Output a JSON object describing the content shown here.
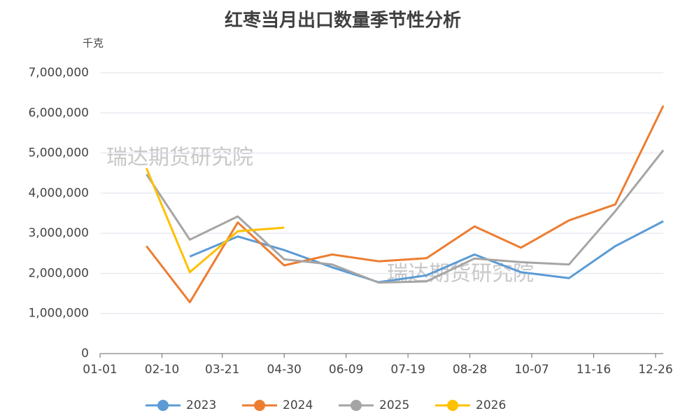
{
  "chart_data": {
    "type": "line",
    "title": "红枣当月出口数量季节性分析",
    "y_unit": "千克",
    "watermarks": [
      "瑞达期货研究院",
      "瑞达期货研究院"
    ],
    "x": [
      "01-31",
      "02-28",
      "03-31",
      "04-30",
      "05-31",
      "06-30",
      "07-31",
      "08-31",
      "09-30",
      "10-31",
      "11-30",
      "12-31"
    ],
    "xlim": [
      "01-01",
      "12-31"
    ],
    "xticks": [
      "01-01",
      "02-10",
      "03-21",
      "04-30",
      "06-09",
      "07-19",
      "08-28",
      "10-07",
      "11-16",
      "12-26"
    ],
    "ylim": [
      0,
      7000000
    ],
    "yticks": [
      0,
      {
        "value": 1000000,
        "label": "1,000,000"
      },
      {
        "value": 2000000,
        "label": "2,000,000"
      },
      {
        "value": 3000000,
        "label": "3,000,000"
      },
      {
        "value": 4000000,
        "label": "4,000,000"
      },
      {
        "value": 5000000,
        "label": "5,000,000"
      },
      {
        "value": 6000000,
        "label": "6,000,000"
      },
      {
        "value": 7000000,
        "label": "7,000,000"
      }
    ],
    "grid": true,
    "legend": "bottom",
    "series": [
      {
        "name": "2023",
        "color": "#5b9bd5",
        "values": [
          null,
          2420000,
          2920000,
          2580000,
          2150000,
          1780000,
          1950000,
          2470000,
          2030000,
          1880000,
          2680000,
          3300000
        ]
      },
      {
        "name": "2024",
        "color": "#ed7d31",
        "values": [
          2680000,
          1280000,
          3270000,
          2200000,
          2470000,
          2300000,
          2380000,
          3170000,
          2640000,
          3320000,
          3720000,
          6180000
        ]
      },
      {
        "name": "2025",
        "color": "#a5a5a5",
        "values": [
          4470000,
          2840000,
          3420000,
          2350000,
          2220000,
          1770000,
          1800000,
          2370000,
          2280000,
          2220000,
          3550000,
          5070000
        ]
      },
      {
        "name": "2026",
        "color": "#ffc000",
        "values": [
          4620000,
          2030000,
          3050000,
          3140000,
          null,
          null,
          null,
          null,
          null,
          null,
          null,
          null
        ]
      }
    ]
  }
}
